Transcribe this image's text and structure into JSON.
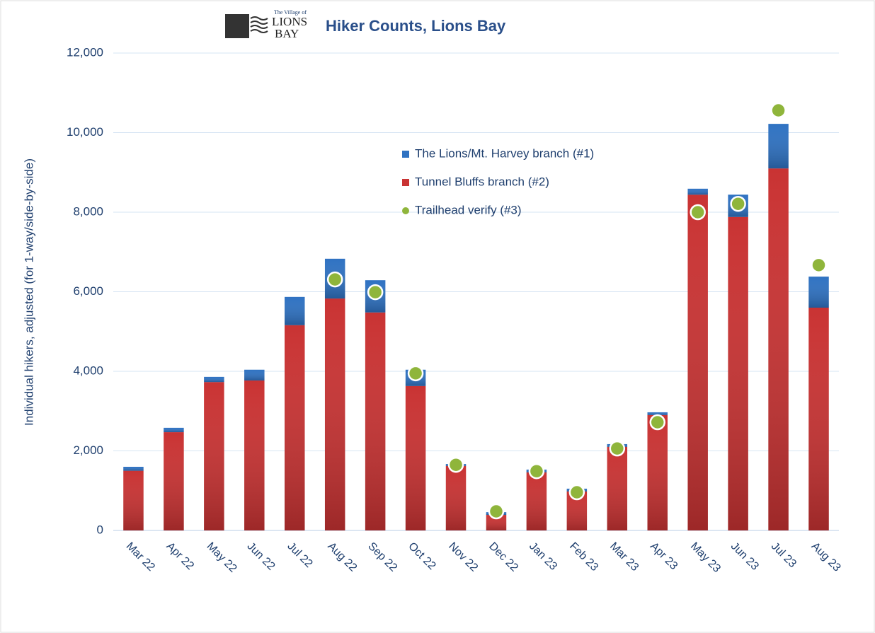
{
  "chart_data": {
    "type": "bar",
    "stacked": true,
    "logo": {
      "small": "The Village of",
      "lines": [
        "LIONS",
        "BAY"
      ]
    },
    "title": "Hiker Counts, Lions Bay",
    "y_label": "Individual hikers, adjusted (for 1-way/side-by-side)",
    "categories": [
      "Mar 22",
      "Apr 22",
      "May 22",
      "Jun 22",
      "Jul 22",
      "Aug 22",
      "Sep 22",
      "Oct 22",
      "Nov 22",
      "Dec 22",
      "Jan 23",
      "Feb 23",
      "Mar 23",
      "Apr 23",
      "May 23",
      "Jun 23",
      "Jul 23",
      "Aug 23"
    ],
    "series": [
      {
        "name": "Tunnel Bluffs branch (#2)",
        "color": "#c93333",
        "values": [
          1500,
          2470,
          3730,
          3770,
          5160,
          5830,
          5480,
          3630,
          1620,
          390,
          1460,
          980,
          2100,
          2900,
          8440,
          7880,
          9100,
          5600
        ]
      },
      {
        "name": "The Lions/Mt. Harvey branch (#1)",
        "color": "#2f72c2",
        "values": [
          100,
          110,
          130,
          270,
          710,
          1000,
          810,
          410,
          50,
          70,
          70,
          70,
          70,
          70,
          150,
          560,
          1120,
          780
        ]
      },
      {
        "name": "Trailhead verify (#3)",
        "type": "scatter",
        "color": "#8fb53b",
        "values": [
          null,
          null,
          null,
          null,
          null,
          6310,
          5990,
          3950,
          1650,
          480,
          1490,
          960,
          2060,
          2720,
          8000,
          8210,
          10560,
          6670
        ]
      }
    ],
    "legend_order": [
      1,
      0,
      2
    ],
    "ylim": [
      0,
      12000
    ],
    "yticks": [
      0,
      {
        "value": 2000,
        "label": "2,000"
      },
      {
        "value": 4000,
        "label": "4,000"
      },
      {
        "value": 6000,
        "label": "6,000"
      },
      {
        "value": 8000,
        "label": "8,000"
      },
      {
        "value": 10000,
        "label": "10,000"
      },
      {
        "value": 12000,
        "label": "12,000"
      }
    ],
    "grid": true
  }
}
